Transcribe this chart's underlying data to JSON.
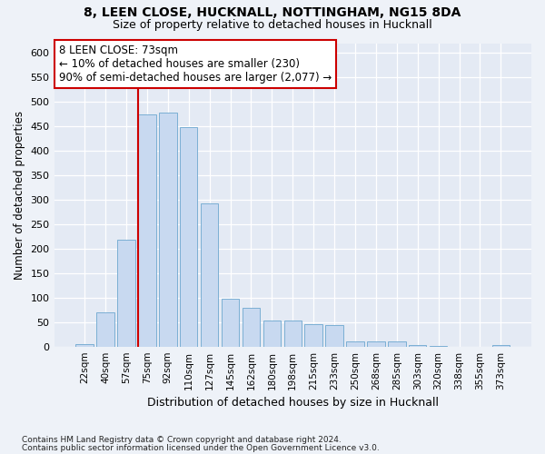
{
  "title1": "8, LEEN CLOSE, HUCKNALL, NOTTINGHAM, NG15 8DA",
  "title2": "Size of property relative to detached houses in Hucknall",
  "xlabel": "Distribution of detached houses by size in Hucknall",
  "ylabel": "Number of detached properties",
  "categories": [
    "22sqm",
    "40sqm",
    "57sqm",
    "75sqm",
    "92sqm",
    "110sqm",
    "127sqm",
    "145sqm",
    "162sqm",
    "180sqm",
    "198sqm",
    "215sqm",
    "233sqm",
    "250sqm",
    "268sqm",
    "285sqm",
    "303sqm",
    "320sqm",
    "338sqm",
    "355sqm",
    "373sqm"
  ],
  "values": [
    5,
    70,
    218,
    475,
    478,
    448,
    292,
    98,
    80,
    53,
    53,
    46,
    44,
    10,
    11,
    11,
    3,
    1,
    0,
    0,
    4
  ],
  "bar_color": "#c8d9f0",
  "bar_edge_color": "#7bafd4",
  "annotation_line0": "8 LEEN CLOSE: 73sqm",
  "annotation_line1": "← 10% of detached houses are smaller (230)",
  "annotation_line2": "90% of semi-detached houses are larger (2,077) →",
  "annotation_box_color": "#ffffff",
  "annotation_box_edge": "#cc0000",
  "vline_color": "#cc0000",
  "ylim": [
    0,
    620
  ],
  "yticks": [
    0,
    50,
    100,
    150,
    200,
    250,
    300,
    350,
    400,
    450,
    500,
    550,
    600
  ],
  "footnote1": "Contains HM Land Registry data © Crown copyright and database right 2024.",
  "footnote2": "Contains public sector information licensed under the Open Government Licence v3.0.",
  "bg_color": "#eef2f8",
  "plot_bg_color": "#e4eaf4"
}
